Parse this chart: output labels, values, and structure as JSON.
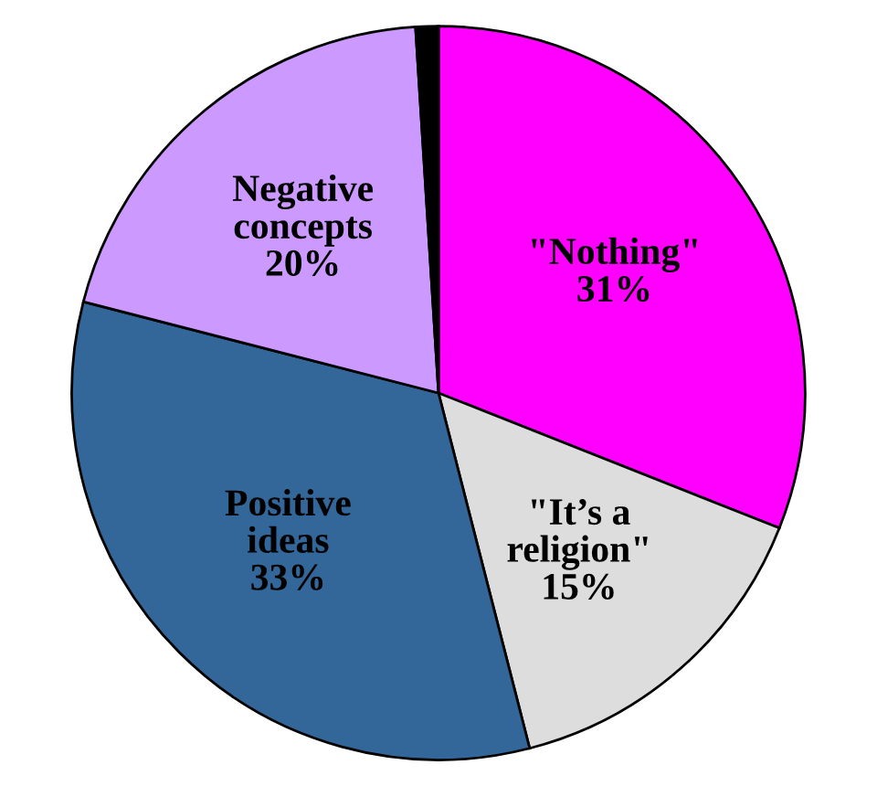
{
  "chart_data": {
    "type": "pie",
    "categories": [
      "\"Nothing\"",
      "\"It’s a religion\"",
      "Positive ideas",
      "Negative concepts",
      null
    ],
    "values": [
      31,
      15,
      33,
      20,
      1
    ],
    "value_labels": [
      "31%",
      "15%",
      "33%",
      "20%",
      null
    ],
    "colors": [
      "#ff00ff",
      "#dddddd",
      "#336699",
      "#cc99ff",
      "#000000"
    ]
  }
}
